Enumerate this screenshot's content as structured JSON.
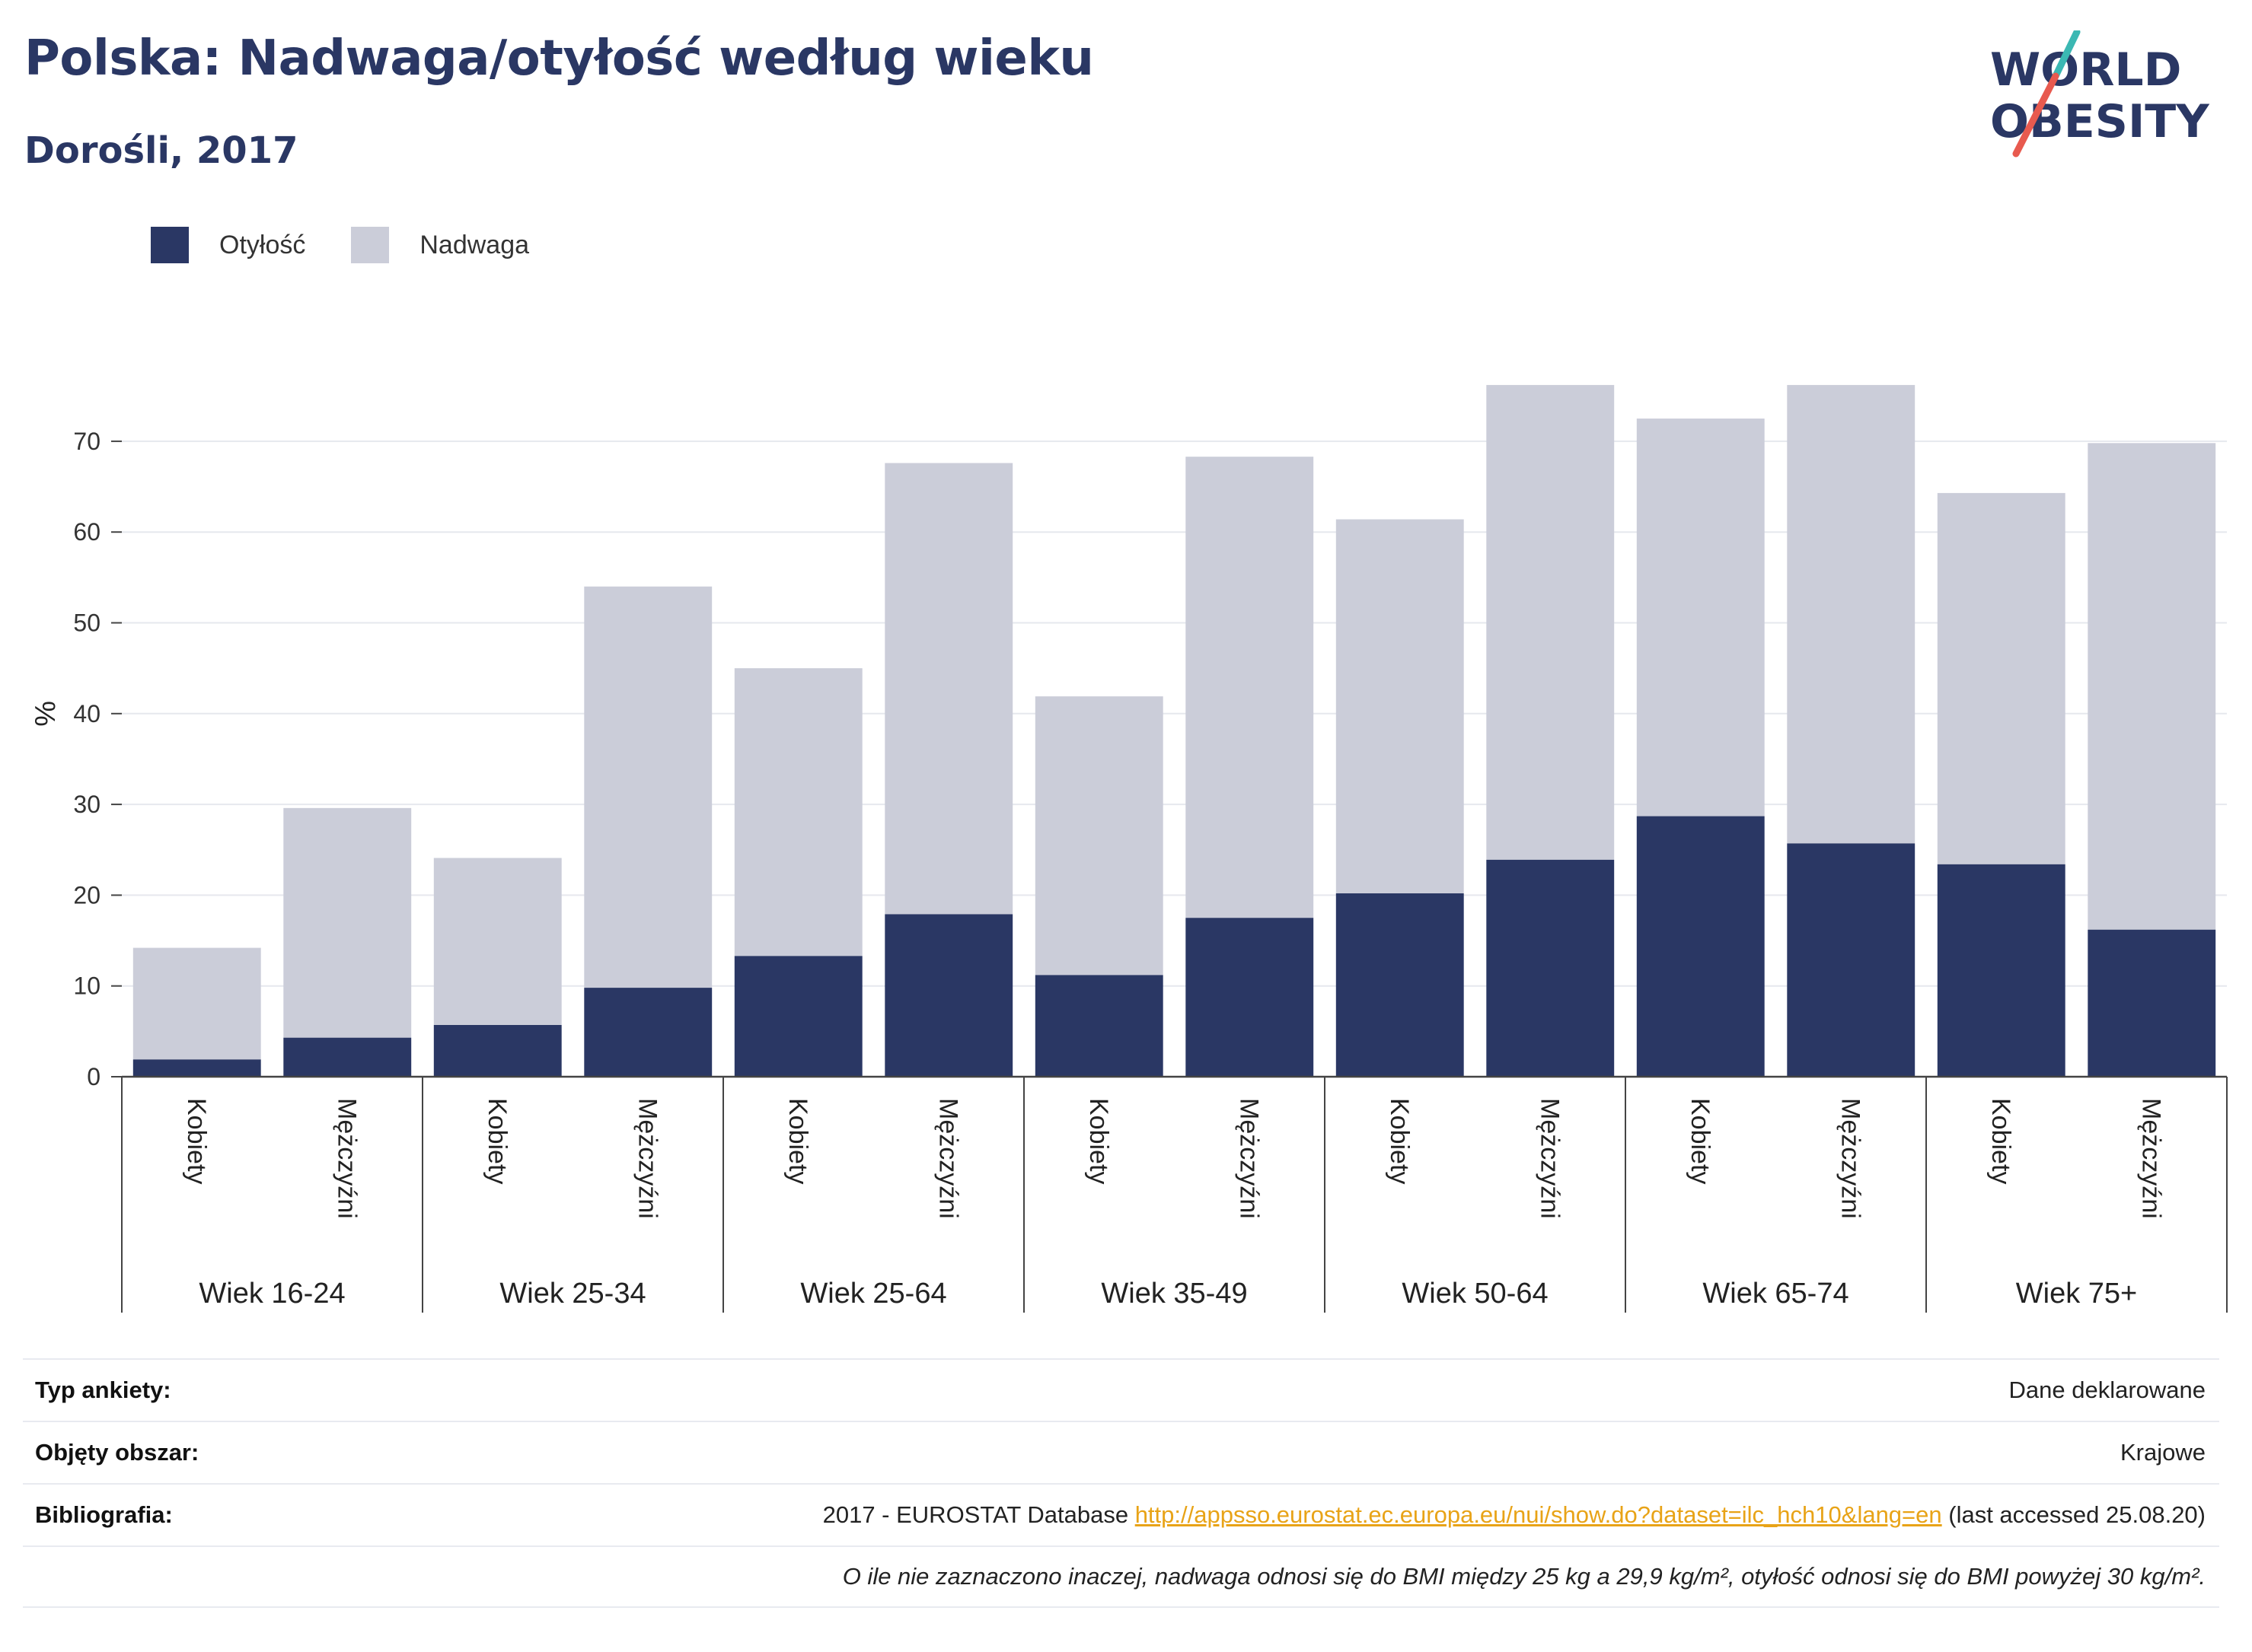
{
  "header": {
    "title": "Polska: Nadwaga/otyłość według wieku",
    "subtitle": "Dorośli, 2017"
  },
  "logo": {
    "line1": "WORLD",
    "line2": "OBESITY"
  },
  "legend": {
    "obesity_label": "Otyłość",
    "overweight_label": "Nadwaga"
  },
  "colors": {
    "obesity": "#2a3764",
    "overweight": "#cbcdd9",
    "title": "#2a3764",
    "logo_teal": "#3bb8b3",
    "logo_red": "#e85a4f",
    "link": "#e8a317"
  },
  "chart_data": {
    "type": "bar",
    "stacked": true,
    "ylabel": "%",
    "ylim": [
      0,
      80
    ],
    "yticks": [
      0,
      10,
      20,
      30,
      40,
      50,
      60,
      70
    ],
    "grid": true,
    "legend_position": "top-left",
    "categories": [
      {
        "group": "Wiek 16-24",
        "sex": "Kobiety"
      },
      {
        "group": "Wiek 16-24",
        "sex": "Mężczyźni"
      },
      {
        "group": "Wiek 25-34",
        "sex": "Kobiety"
      },
      {
        "group": "Wiek 25-34",
        "sex": "Mężczyźni"
      },
      {
        "group": "Wiek 25-64",
        "sex": "Kobiety"
      },
      {
        "group": "Wiek 25-64",
        "sex": "Mężczyźni"
      },
      {
        "group": "Wiek 35-49",
        "sex": "Kobiety"
      },
      {
        "group": "Wiek 35-49",
        "sex": "Mężczyźni"
      },
      {
        "group": "Wiek 50-64",
        "sex": "Kobiety"
      },
      {
        "group": "Wiek 50-64",
        "sex": "Mężczyźni"
      },
      {
        "group": "Wiek 65-74",
        "sex": "Kobiety"
      },
      {
        "group": "Wiek 65-74",
        "sex": "Mężczyźni"
      },
      {
        "group": "Wiek 75+",
        "sex": "Kobiety"
      },
      {
        "group": "Wiek 75+",
        "sex": "Mężczyźni"
      }
    ],
    "groups": [
      "Wiek 16-24",
      "Wiek 25-34",
      "Wiek 25-64",
      "Wiek 35-49",
      "Wiek 50-64",
      "Wiek 65-74",
      "Wiek 75+"
    ],
    "series": [
      {
        "name": "Otyłość",
        "values": [
          1.9,
          4.3,
          5.7,
          9.8,
          13.3,
          17.9,
          11.2,
          17.5,
          20.2,
          23.9,
          28.7,
          25.7,
          23.4,
          16.2
        ]
      },
      {
        "name": "Nadwaga",
        "values": [
          12.3,
          25.3,
          18.4,
          44.2,
          31.7,
          49.7,
          30.7,
          50.8,
          41.2,
          52.3,
          43.8,
          50.5,
          40.9,
          53.6
        ]
      }
    ]
  },
  "footer": {
    "survey_label": "Typ ankiety:",
    "survey_value": "Dane deklarowane",
    "area_label": "Objęty obszar:",
    "area_value": "Krajowe",
    "biblio_label": "Bibliografia:",
    "biblio_prefix": "2017 - EUROSTAT Database ",
    "biblio_link": "http://appsso.eurostat.ec.europa.eu/nui/show.do?dataset=ilc_hch10&lang=en",
    "biblio_suffix": " (last accessed 25.08.20)",
    "note": "O ile nie zaznaczono inaczej, nadwaga odnosi się do BMI między 25 kg a 29,9 kg/m², otyłość odnosi się do BMI powyżej 30 kg/m²."
  }
}
